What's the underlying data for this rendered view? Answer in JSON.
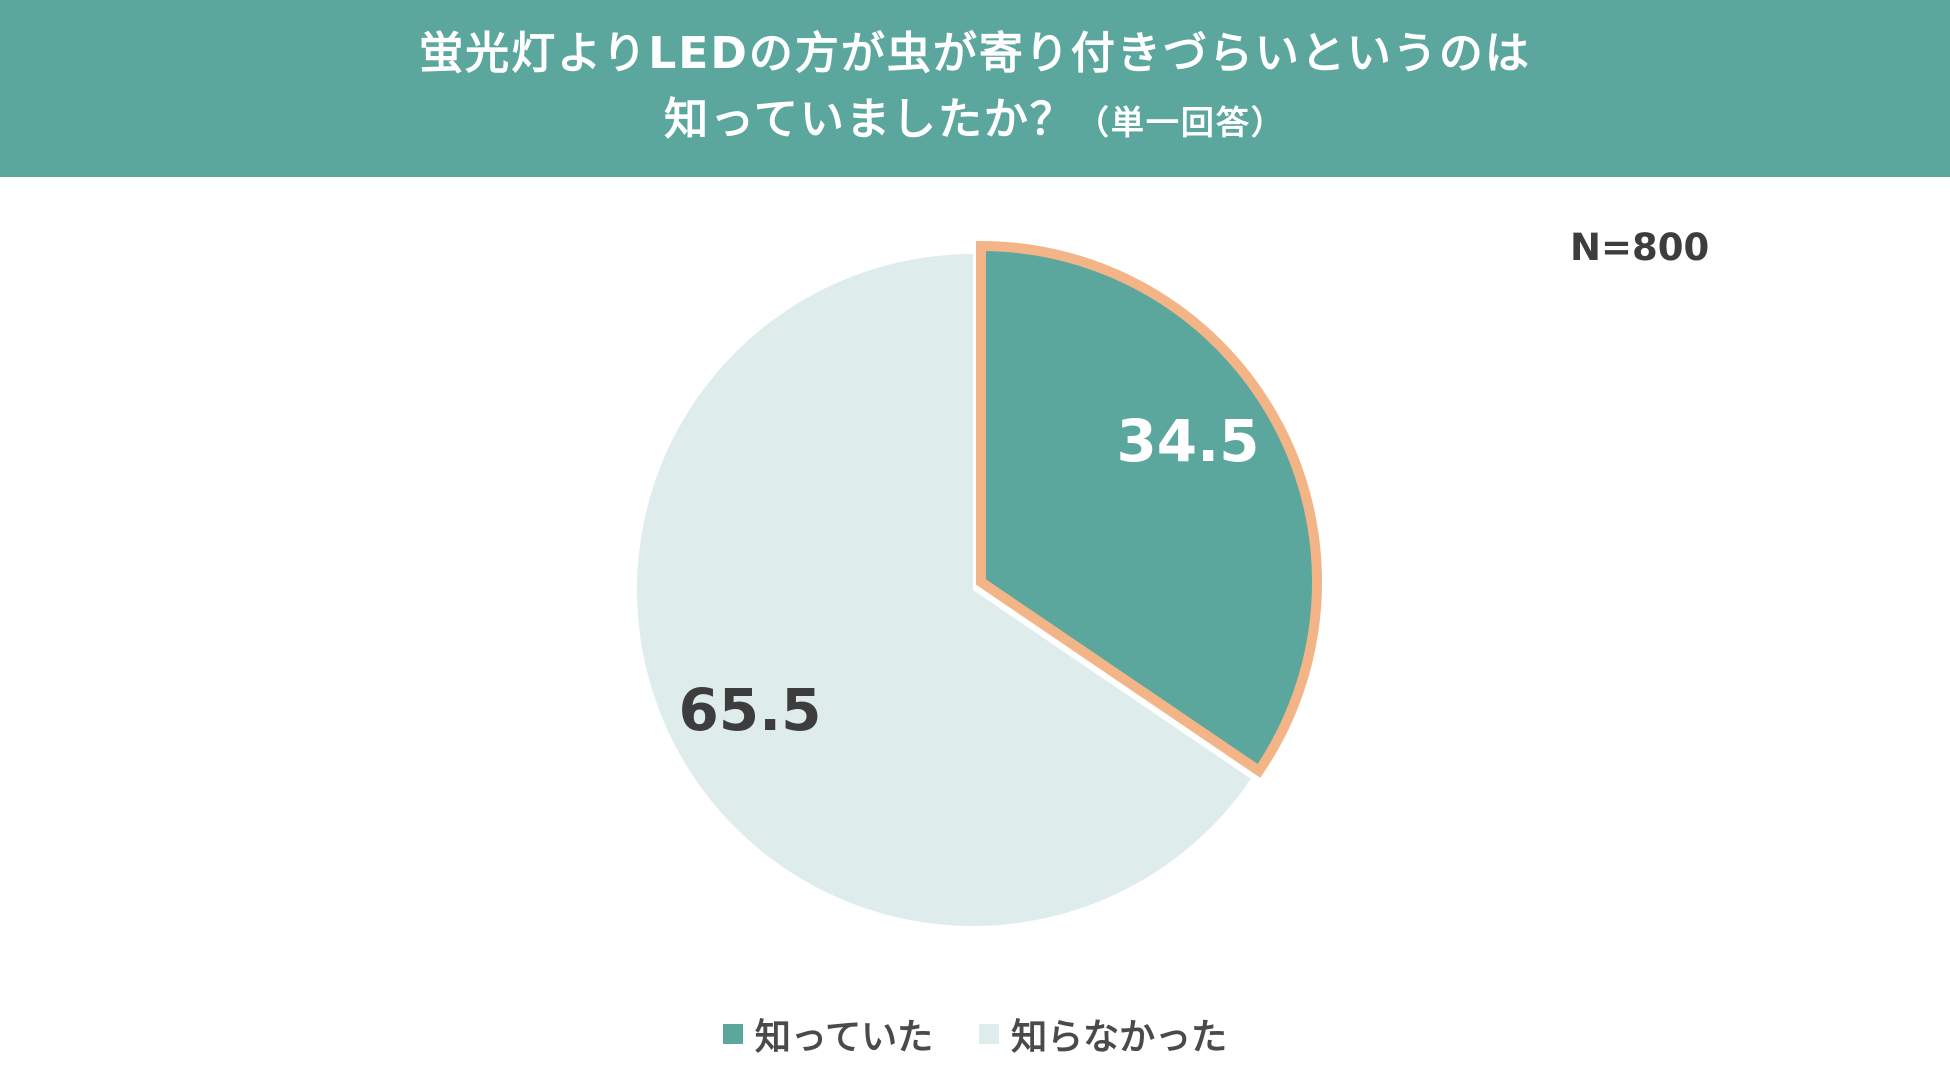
{
  "header": {
    "title_line1": "蛍光灯よりLEDの方が虫が寄り付きづらいというのは",
    "title_line2": "知っていましたか？",
    "title_note": "（単一回答）"
  },
  "sample_size": "N=800",
  "chart_data": {
    "type": "pie",
    "title": "蛍光灯よりLEDの方が虫が寄り付きづらいというのは知っていましたか？（単一回答）",
    "slices": [
      {
        "label": "知っていた",
        "value": 34.5,
        "color": "#5ba79e",
        "highlight_color": "#f3b487",
        "label_color": "#ffffff"
      },
      {
        "label": "知らなかった",
        "value": 65.5,
        "color": "#deedeb",
        "label_color": "#3d3d3d"
      }
    ],
    "legend_position": "bottom"
  },
  "legend": {
    "items": [
      "知っていた",
      "知らなかった"
    ]
  }
}
